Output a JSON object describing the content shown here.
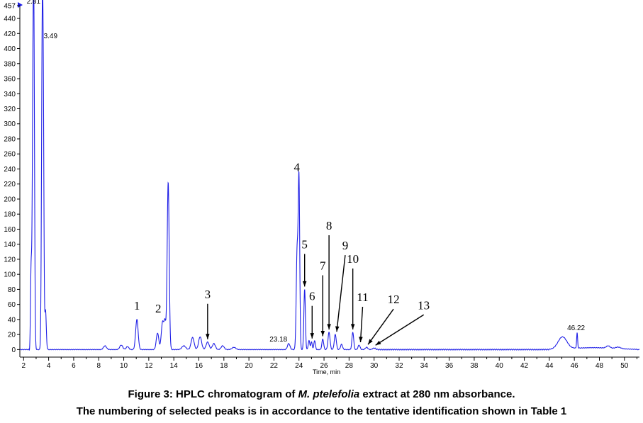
{
  "chart_data": {
    "type": "line",
    "xlabel": "Time, min",
    "ylabel": "",
    "xlim": [
      1.7,
      51.2
    ],
    "ylim": [
      -10,
      457
    ],
    "x_ticks": [
      2,
      4,
      6,
      8,
      10,
      12,
      14,
      16,
      18,
      20,
      22,
      24,
      26,
      28,
      30,
      32,
      34,
      36,
      38,
      40,
      42,
      44,
      46,
      48,
      50
    ],
    "y_ticks": [
      0,
      20,
      40,
      60,
      80,
      100,
      120,
      140,
      160,
      180,
      200,
      220,
      240,
      260,
      280,
      300,
      320,
      340,
      360,
      380,
      400,
      420,
      440,
      457
    ],
    "line_color": "#1f1fe6",
    "peaks": [
      {
        "rt": 2.6,
        "h": 110,
        "w": 0.05
      },
      {
        "rt": 2.72,
        "h": 170,
        "w": 0.05
      },
      {
        "rt": 2.81,
        "h": 457,
        "w": 0.06
      },
      {
        "rt": 3.49,
        "h": 412,
        "w": 0.06
      },
      {
        "rt": 3.58,
        "h": 236,
        "w": 0.05
      },
      {
        "rt": 3.75,
        "h": 52,
        "w": 0.06
      },
      {
        "rt": 8.5,
        "h": 5,
        "w": 0.12
      },
      {
        "rt": 9.8,
        "h": 6,
        "w": 0.12
      },
      {
        "rt": 10.3,
        "h": 4,
        "w": 0.1
      },
      {
        "rt": 11.05,
        "h": 40,
        "w": 0.1
      },
      {
        "rt": 12.7,
        "h": 22,
        "w": 0.1
      },
      {
        "rt": 13.1,
        "h": 36,
        "w": 0.1
      },
      {
        "rt": 13.3,
        "h": 34,
        "w": 0.08
      },
      {
        "rt": 13.55,
        "h": 222,
        "w": 0.08
      },
      {
        "rt": 14.8,
        "h": 5,
        "w": 0.15
      },
      {
        "rt": 15.5,
        "h": 16,
        "w": 0.12
      },
      {
        "rt": 16.1,
        "h": 17,
        "w": 0.12
      },
      {
        "rt": 16.7,
        "h": 10,
        "w": 0.12
      },
      {
        "rt": 17.2,
        "h": 8,
        "w": 0.12
      },
      {
        "rt": 17.9,
        "h": 5,
        "w": 0.12
      },
      {
        "rt": 18.8,
        "h": 3,
        "w": 0.15
      },
      {
        "rt": 23.18,
        "h": 8,
        "w": 0.1
      },
      {
        "rt": 23.85,
        "h": 130,
        "w": 0.07
      },
      {
        "rt": 24.0,
        "h": 222,
        "w": 0.06
      },
      {
        "rt": 24.45,
        "h": 80,
        "w": 0.06
      },
      {
        "rt": 24.8,
        "h": 12,
        "w": 0.06
      },
      {
        "rt": 25.0,
        "h": 10,
        "w": 0.06
      },
      {
        "rt": 25.25,
        "h": 12,
        "w": 0.06
      },
      {
        "rt": 25.9,
        "h": 14,
        "w": 0.07
      },
      {
        "rt": 26.4,
        "h": 23,
        "w": 0.08
      },
      {
        "rt": 26.9,
        "h": 20,
        "w": 0.08
      },
      {
        "rt": 27.4,
        "h": 7,
        "w": 0.08
      },
      {
        "rt": 28.3,
        "h": 23,
        "w": 0.07
      },
      {
        "rt": 28.8,
        "h": 6,
        "w": 0.08
      },
      {
        "rt": 29.4,
        "h": 3,
        "w": 0.1
      },
      {
        "rt": 30.0,
        "h": 2,
        "w": 0.12
      },
      {
        "rt": 45.05,
        "h": 16,
        "w": 0.35
      },
      {
        "rt": 46.22,
        "h": 20,
        "w": 0.04
      },
      {
        "rt": 48.7,
        "h": 3,
        "w": 0.15
      },
      {
        "rt": 49.5,
        "h": 2,
        "w": 0.2
      }
    ],
    "rt_labels": [
      {
        "text": "2.81",
        "x": 2.81,
        "y": 457
      },
      {
        "text": "3.49",
        "x": 3.49,
        "y": 412
      },
      {
        "text": "23.18",
        "x": 23.18,
        "y": 8
      },
      {
        "text": "46.22",
        "x": 46.22,
        "y": 20
      }
    ],
    "peak_labels": [
      {
        "num": "1",
        "x": 11.05,
        "y": 40
      },
      {
        "num": "2",
        "x": 13.1,
        "y": 36
      },
      {
        "num": "3",
        "x": 16.7,
        "y": 10
      },
      {
        "num": "4",
        "x": 24.0,
        "y": 222
      },
      {
        "num": "5",
        "x": 24.45,
        "y": 80
      },
      {
        "num": "6",
        "x": 25.05,
        "y": 11
      },
      {
        "num": "7",
        "x": 25.9,
        "y": 14
      },
      {
        "num": "8",
        "x": 26.4,
        "y": 23
      },
      {
        "num": "9",
        "x": 26.9,
        "y": 20
      },
      {
        "num": "10",
        "x": 28.3,
        "y": 23
      },
      {
        "num": "11",
        "x": 28.8,
        "y": 6
      },
      {
        "num": "12",
        "x": 29.4,
        "y": 3
      },
      {
        "num": "13",
        "x": 30.0,
        "y": 2
      }
    ]
  },
  "caption": {
    "line1_prefix": "Figure 3: HPLC chromatogram of ",
    "line1_species": "M. ptelefolia",
    "line1_suffix": " extract at 280 nm absorbance.",
    "line2": "The numbering of selected peaks is in accordance to the tentative identification shown in Table 1"
  }
}
